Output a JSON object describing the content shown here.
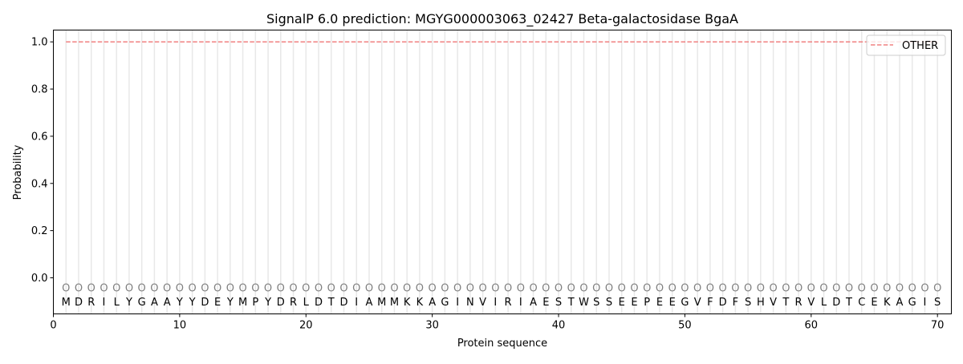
{
  "chart_data": {
    "type": "line",
    "title": "SignalP 6.0 prediction: MGYG000003063_02427 Beta-galactosidase BgaA",
    "xlabel": "Protein sequence",
    "ylabel": "Probability",
    "xlim": [
      0,
      71.1
    ],
    "ylim": [
      -0.153,
      1.05
    ],
    "xticks": [
      0,
      10,
      20,
      30,
      40,
      50,
      60,
      70
    ],
    "yticks": [
      0.0,
      0.2,
      0.4,
      0.6,
      0.8,
      1.0
    ],
    "ytick_labels": [
      "0.0",
      "0.2",
      "0.4",
      "0.6",
      "0.8",
      "1.0"
    ],
    "grid": "vertical lines at each residue",
    "legend_position": "top-right",
    "series": [
      {
        "name": "OTHER",
        "color": "#f08080",
        "style": "dashed",
        "x_start": 1,
        "x_end": 70,
        "value": 1.0
      }
    ],
    "sequence": [
      "M",
      "D",
      "R",
      "I",
      "L",
      "Y",
      "G",
      "A",
      "A",
      "Y",
      "Y",
      "D",
      "E",
      "Y",
      "M",
      "P",
      "Y",
      "D",
      "R",
      "L",
      "D",
      "T",
      "D",
      "I",
      "A",
      "M",
      "M",
      "K",
      "K",
      "A",
      "G",
      "I",
      "N",
      "V",
      "I",
      "R",
      "I",
      "A",
      "E",
      "S",
      "T",
      "W",
      "S",
      "S",
      "E",
      "E",
      "P",
      "E",
      "E",
      "G",
      "V",
      "F",
      "D",
      "F",
      "S",
      "H",
      "V",
      "T",
      "R",
      "V",
      "L",
      "D",
      "T",
      "C",
      "E",
      "K",
      "A",
      "G",
      "I",
      "S"
    ],
    "region_labels_value": "O",
    "region_label_y": -0.045
  }
}
